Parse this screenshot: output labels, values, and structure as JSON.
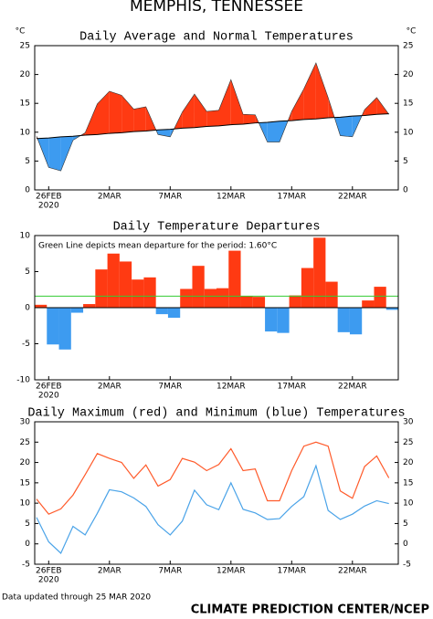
{
  "header": {
    "title": "MEMPHIS, TENNESSEE"
  },
  "chart_data": [
    {
      "type": "area_vs_normal",
      "title": "Daily Average and Normal Temperatures",
      "y_label": "°C",
      "y2_label": "°C",
      "categories": [
        null,
        "26FEB",
        null,
        null,
        null,
        null,
        "2MAR",
        null,
        null,
        null,
        null,
        "7MAR",
        null,
        null,
        null,
        null,
        "12MAR",
        null,
        null,
        null,
        null,
        "17MAR",
        null,
        null,
        null,
        null,
        "22MAR",
        null,
        null,
        null
      ],
      "x_sublabel": "2020",
      "values": [
        9.3,
        3.9,
        3.3,
        8.6,
        9.9,
        14.9,
        17.1,
        16.4,
        14.0,
        14.4,
        9.6,
        9.2,
        13.5,
        16.6,
        13.6,
        13.8,
        19.1,
        13.1,
        13.0,
        8.3,
        8.3,
        13.6,
        17.5,
        22.0,
        16.0,
        9.4,
        9.2,
        13.9,
        16.0,
        13.1
      ],
      "normal": [
        8.9,
        9.0,
        9.2,
        9.3,
        9.5,
        9.6,
        9.8,
        9.9,
        10.1,
        10.2,
        10.4,
        10.5,
        10.7,
        10.8,
        11.0,
        11.1,
        11.3,
        11.4,
        11.6,
        11.7,
        11.9,
        12.0,
        12.2,
        12.3,
        12.5,
        12.6,
        12.8,
        12.9,
        13.1,
        13.2
      ],
      "above_color": "#ff3a12",
      "below_color": "#3d9bf0",
      "line_color": "#000000",
      "ylim": [
        0,
        25
      ],
      "yticks": [
        0,
        5,
        10,
        15,
        20,
        25
      ],
      "y2lim": [
        0,
        25
      ],
      "y2ticks": [
        0,
        5,
        10,
        15,
        20,
        25
      ]
    },
    {
      "type": "bar",
      "title": "Daily Temperature Departures",
      "annotation": "Green Line depicts mean departure for the period: 1.60°C",
      "categories": [
        null,
        "26FEB",
        null,
        null,
        null,
        null,
        "2MAR",
        null,
        null,
        null,
        null,
        "7MAR",
        null,
        null,
        null,
        null,
        "12MAR",
        null,
        null,
        null,
        null,
        "17MAR",
        null,
        null,
        null,
        null,
        "22MAR",
        null,
        null,
        null
      ],
      "x_sublabel": "2020",
      "values": [
        0.4,
        -5.1,
        -5.8,
        -0.7,
        0.5,
        5.3,
        7.5,
        6.4,
        3.9,
        4.2,
        -0.9,
        -1.4,
        2.6,
        5.8,
        2.6,
        2.7,
        7.9,
        1.6,
        1.5,
        -3.3,
        -3.5,
        1.7,
        5.5,
        9.7,
        3.6,
        -3.4,
        -3.7,
        1.0,
        2.9,
        -0.3
      ],
      "positive_color": "#ff3a12",
      "negative_color": "#3d9bf0",
      "mean": 1.6,
      "mean_color": "#33cc33",
      "ylim": [
        -10,
        10
      ],
      "yticks": [
        -10,
        -5,
        0,
        5,
        10
      ]
    },
    {
      "type": "line",
      "title": "Daily Maximum (red) and Minimum (blue) Temperatures",
      "categories": [
        null,
        "26FEB",
        null,
        null,
        null,
        null,
        "2MAR",
        null,
        null,
        null,
        null,
        "7MAR",
        null,
        null,
        null,
        null,
        "12MAR",
        null,
        null,
        null,
        null,
        "17MAR",
        null,
        null,
        null,
        null,
        "22MAR",
        null,
        null,
        null
      ],
      "x_sublabel": "2020",
      "series": [
        {
          "color": "#ff5a2a",
          "values": [
            11.0,
            7.3,
            8.6,
            12.0,
            17.0,
            22.2,
            21.0,
            20.0,
            16.1,
            19.4,
            14.2,
            15.8,
            21.0,
            20.1,
            18.0,
            19.5,
            23.4,
            18.0,
            18.4,
            10.6,
            10.6,
            18.0,
            24.0,
            25.0,
            24.0,
            13.0,
            11.2,
            19.0,
            21.6,
            16.2
          ]
        },
        {
          "color": "#4aa3e8",
          "values": [
            6.5,
            0.5,
            -2.3,
            4.3,
            2.2,
            7.5,
            13.3,
            12.8,
            11.3,
            9.2,
            4.7,
            2.2,
            5.6,
            13.2,
            9.6,
            8.4,
            15.0,
            8.5,
            7.6,
            6.0,
            6.2,
            9.2,
            11.6,
            19.2,
            8.2,
            6.0,
            7.3,
            9.3,
            10.6,
            9.9
          ]
        }
      ],
      "ylim": [
        -5,
        30
      ],
      "yticks": [
        -5,
        0,
        5,
        10,
        15,
        20,
        25,
        30
      ],
      "y2lim": [
        -5,
        30
      ],
      "y2ticks": [
        -5,
        0,
        5,
        10,
        15,
        20,
        25,
        30
      ]
    }
  ],
  "footer": {
    "updated": "Data updated through 25 MAR 2020",
    "credit": "CLIMATE PREDICTION CENTER/NCEP"
  }
}
